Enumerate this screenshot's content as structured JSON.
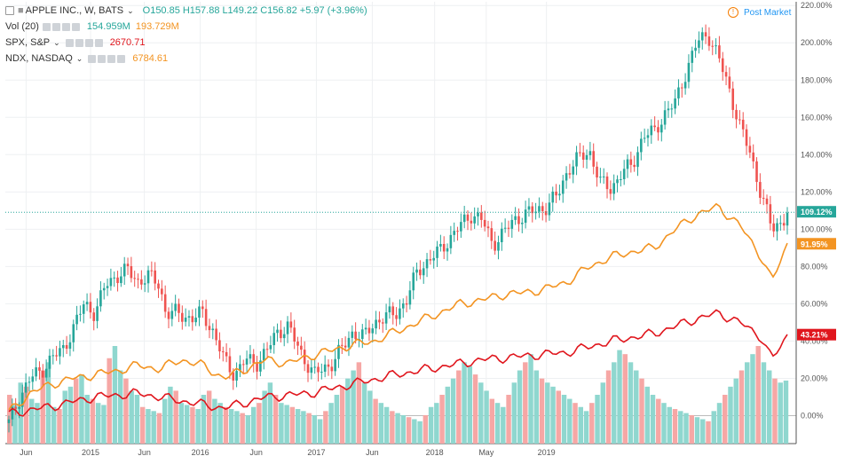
{
  "legend": {
    "main": {
      "symbol": "APPLE INC., W, BATS",
      "o": "O150.85",
      "h": "H157.88",
      "l": "L149.22",
      "c": "C156.82",
      "chg": "+5.97 (+3.96%)"
    },
    "vol": {
      "label": "Vol (20)",
      "v1": "154.959M",
      "v2": "193.729M"
    },
    "spx": {
      "label": "SPX, S&P",
      "value": "2670.71"
    },
    "ndx": {
      "label": "NDX, NASDAQ",
      "value": "6784.61"
    }
  },
  "post_market": "Post Market",
  "badges": {
    "aapl": "109.12%",
    "ndx": "91.95%",
    "spx": "43.21%"
  },
  "colors": {
    "up": "#26a69a",
    "down": "#ef5350",
    "ndx": "#f39422",
    "spx": "#e0161d",
    "grid": "#eef0f2",
    "axis": "#555555"
  },
  "chart_data": {
    "type": "line",
    "y_axis": {
      "unit": "%",
      "ticks": [
        "220.00%",
        "200.00%",
        "180.00%",
        "160.00%",
        "140.00%",
        "120.00%",
        "100.00%",
        "80.00%",
        "60.00%",
        "40.00%",
        "20.00%",
        "0.00%"
      ],
      "range": [
        -15,
        222
      ]
    },
    "x_axis": {
      "ticks": [
        "Jun",
        "2015",
        "Jun",
        "2016",
        "Jun",
        "2017",
        "Jun",
        "2018",
        "May",
        "2019"
      ]
    },
    "series": [
      {
        "name": "APPLE INC.",
        "style": "candles",
        "values": [
          [
            0,
            -4
          ],
          [
            0.05,
            10
          ],
          [
            0.1,
            20
          ],
          [
            0.15,
            24
          ],
          [
            0.2,
            31
          ],
          [
            0.25,
            35
          ],
          [
            0.3,
            47
          ],
          [
            0.35,
            60
          ],
          [
            0.4,
            55
          ],
          [
            0.45,
            70
          ],
          [
            0.5,
            75
          ],
          [
            0.55,
            78
          ],
          [
            0.6,
            72
          ],
          [
            0.65,
            75
          ],
          [
            0.7,
            70
          ],
          [
            0.73,
            55
          ],
          [
            0.78,
            55
          ],
          [
            0.85,
            52
          ],
          [
            0.9,
            55
          ],
          [
            0.95,
            45
          ],
          [
            1.0,
            30
          ],
          [
            1.05,
            22
          ],
          [
            1.1,
            30
          ],
          [
            1.15,
            28
          ],
          [
            1.2,
            35
          ],
          [
            1.25,
            45
          ],
          [
            1.3,
            48
          ],
          [
            1.35,
            35
          ],
          [
            1.42,
            22
          ],
          [
            1.5,
            28
          ],
          [
            1.55,
            36
          ],
          [
            1.6,
            45
          ],
          [
            1.65,
            42
          ],
          [
            1.7,
            50
          ],
          [
            1.75,
            53
          ],
          [
            1.8,
            55
          ],
          [
            1.85,
            62
          ],
          [
            1.9,
            78
          ],
          [
            1.95,
            83
          ],
          [
            2.0,
            88
          ],
          [
            2.05,
            95
          ],
          [
            2.1,
            102
          ],
          [
            2.15,
            108
          ],
          [
            2.2,
            105
          ],
          [
            2.25,
            92
          ],
          [
            2.3,
            98
          ],
          [
            2.35,
            105
          ],
          [
            2.4,
            108
          ],
          [
            2.45,
            110
          ],
          [
            2.5,
            112
          ],
          [
            2.55,
            118
          ],
          [
            2.6,
            132
          ],
          [
            2.65,
            138
          ],
          [
            2.7,
            142
          ],
          [
            2.75,
            125
          ],
          [
            2.8,
            122
          ],
          [
            2.85,
            130
          ],
          [
            2.9,
            135
          ],
          [
            2.95,
            150
          ],
          [
            3.0,
            152
          ],
          [
            3.05,
            162
          ],
          [
            3.1,
            168
          ],
          [
            3.15,
            185
          ],
          [
            3.2,
            200
          ],
          [
            3.25,
            205
          ],
          [
            3.3,
            192
          ],
          [
            3.35,
            175
          ],
          [
            3.4,
            155
          ],
          [
            3.45,
            140
          ],
          [
            3.5,
            118
          ],
          [
            3.55,
            100
          ],
          [
            3.6,
            105
          ],
          [
            3.62,
            109
          ]
        ]
      },
      {
        "name": "NDX",
        "style": "line",
        "values": [
          [
            0,
            2
          ],
          [
            0.1,
            12
          ],
          [
            0.2,
            17
          ],
          [
            0.3,
            20
          ],
          [
            0.4,
            22
          ],
          [
            0.5,
            24
          ],
          [
            0.6,
            27
          ],
          [
            0.7,
            25
          ],
          [
            0.8,
            30
          ],
          [
            0.9,
            27
          ],
          [
            1.0,
            20
          ],
          [
            1.1,
            25
          ],
          [
            1.2,
            30
          ],
          [
            1.3,
            28
          ],
          [
            1.4,
            32
          ],
          [
            1.5,
            35
          ],
          [
            1.6,
            38
          ],
          [
            1.7,
            40
          ],
          [
            1.8,
            45
          ],
          [
            1.9,
            50
          ],
          [
            2.0,
            55
          ],
          [
            2.1,
            60
          ],
          [
            2.2,
            62
          ],
          [
            2.3,
            65
          ],
          [
            2.4,
            66
          ],
          [
            2.5,
            68
          ],
          [
            2.6,
            72
          ],
          [
            2.7,
            80
          ],
          [
            2.8,
            85
          ],
          [
            2.9,
            88
          ],
          [
            3.0,
            90
          ],
          [
            3.1,
            100
          ],
          [
            3.2,
            108
          ],
          [
            3.3,
            112
          ],
          [
            3.4,
            102
          ],
          [
            3.5,
            85
          ],
          [
            3.55,
            72
          ],
          [
            3.62,
            92
          ]
        ]
      },
      {
        "name": "SPX",
        "style": "line",
        "values": [
          [
            0,
            1
          ],
          [
            0.2,
            5
          ],
          [
            0.4,
            10
          ],
          [
            0.6,
            12
          ],
          [
            0.8,
            8
          ],
          [
            1.0,
            4
          ],
          [
            1.2,
            10
          ],
          [
            1.4,
            12
          ],
          [
            1.6,
            17
          ],
          [
            1.8,
            22
          ],
          [
            2.0,
            26
          ],
          [
            2.2,
            30
          ],
          [
            2.4,
            32
          ],
          [
            2.6,
            34
          ],
          [
            2.8,
            40
          ],
          [
            3.0,
            44
          ],
          [
            3.1,
            48
          ],
          [
            3.2,
            52
          ],
          [
            3.3,
            55
          ],
          [
            3.4,
            50
          ],
          [
            3.5,
            42
          ],
          [
            3.55,
            30
          ],
          [
            3.62,
            43
          ]
        ]
      },
      {
        "name": "Vol (20)",
        "style": "histogram",
        "values_million": [
          120,
          95,
          150,
          140,
          110,
          100,
          180,
          200,
          90,
          85,
          130,
          140,
          160,
          170,
          120,
          110,
          100,
          95,
          210,
          240,
          180,
          160,
          130,
          120,
          90,
          85,
          80,
          75,
          110,
          140,
          130,
          100,
          95,
          90,
          85,
          120,
          130,
          110,
          100,
          90,
          85,
          80,
          75,
          70,
          90,
          100,
          130,
          150,
          120,
          100,
          95,
          90,
          85,
          80,
          75,
          70,
          60,
          80,
          100,
          120,
          140,
          160,
          180,
          200,
          150,
          130,
          110,
          100,
          90,
          80,
          75,
          70,
          65,
          60,
          55,
          70,
          90,
          100,
          120,
          140,
          160,
          180,
          200,
          190,
          170,
          150,
          130,
          110,
          100,
          90,
          120,
          150,
          180,
          200,
          220,
          180,
          160,
          150,
          140,
          130,
          120,
          110,
          100,
          90,
          80,
          100,
          120,
          150,
          180,
          200,
          230,
          220,
          200,
          180,
          160,
          140,
          120,
          110,
          100,
          90,
          85,
          80,
          75,
          70,
          65,
          60,
          55,
          80,
          100,
          120,
          140,
          160,
          180,
          200,
          220,
          240,
          200,
          180,
          160,
          150,
          154.959
        ]
      }
    ]
  }
}
